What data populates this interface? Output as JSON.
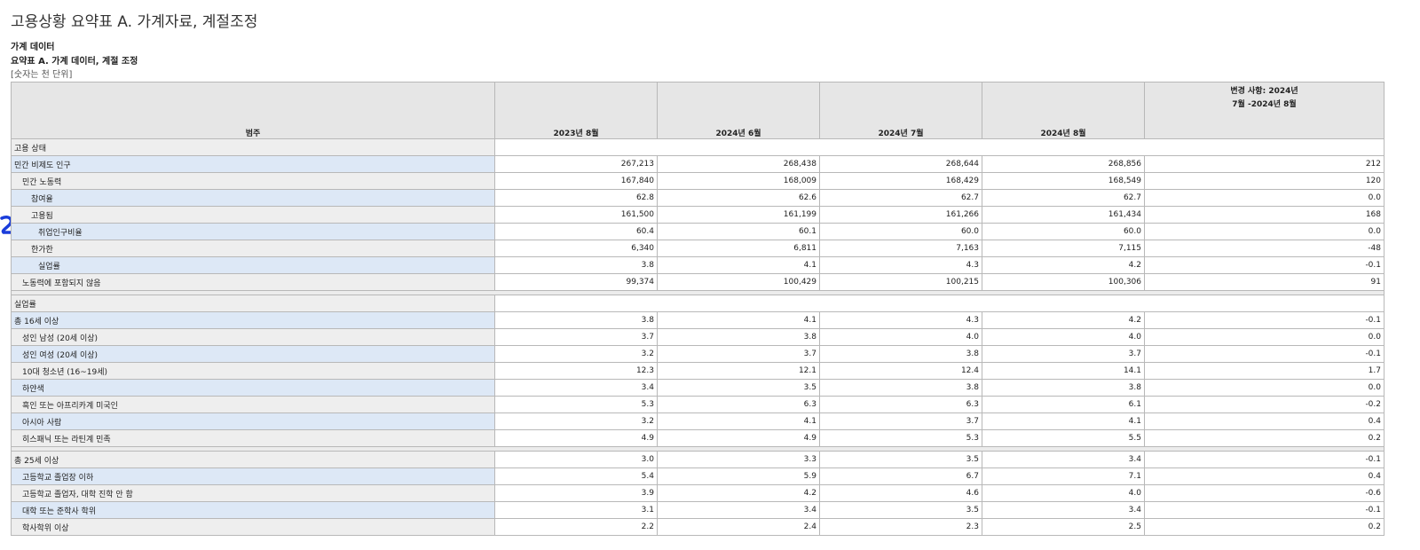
{
  "header": {
    "title": "고용상황 요약표 A. 가계자료, 계절조정",
    "subtitle1": "가계 데이터",
    "subtitle2": "요약표 A. 가계 데이터, 계절 조정",
    "unit_note": "[숫자는 천 단위]"
  },
  "table": {
    "columns": {
      "category": "범주",
      "c1": "2023년 8월",
      "c2": "2024년 6월",
      "c3": "2024년 7월",
      "c4": "2024년 8월",
      "change_line1": "변경 사항: 2024년",
      "change_line2": "7월 -2024년 8월"
    },
    "sections": {
      "employment": "고용 상태",
      "unemployment_rates": "실업률"
    },
    "employment_rows": [
      {
        "label": "민간 비제도 인구",
        "values": [
          "267,213",
          "268,438",
          "268,644",
          "268,856",
          "212"
        ]
      },
      {
        "label": "민간 노동력",
        "values": [
          "167,840",
          "168,009",
          "168,429",
          "168,549",
          "120"
        ]
      },
      {
        "label": "참여율",
        "values": [
          "62.8",
          "62.6",
          "62.7",
          "62.7",
          "0.0"
        ]
      },
      {
        "label": "고용됨",
        "values": [
          "161,500",
          "161,199",
          "161,266",
          "161,434",
          "168"
        ]
      },
      {
        "label": "취업인구비율",
        "values": [
          "60.4",
          "60.1",
          "60.0",
          "60.0",
          "0.0"
        ]
      },
      {
        "label": "한가한",
        "values": [
          "6,340",
          "6,811",
          "7,163",
          "7,115",
          "-48"
        ]
      },
      {
        "label": "실업률",
        "values": [
          "3.8",
          "4.1",
          "4.3",
          "4.2",
          "-0.1"
        ]
      },
      {
        "label": "노동력에 포함되지 않음",
        "values": [
          "99,374",
          "100,429",
          "100,215",
          "100,306",
          "91"
        ]
      }
    ],
    "rate_rows_16": [
      {
        "label": "총 16세 이상",
        "values": [
          "3.8",
          "4.1",
          "4.3",
          "4.2",
          "-0.1"
        ]
      },
      {
        "label": "성인 남성 (20세 이상)",
        "values": [
          "3.7",
          "3.8",
          "4.0",
          "4.0",
          "0.0"
        ]
      },
      {
        "label": "성인 여성 (20세 이상)",
        "values": [
          "3.2",
          "3.7",
          "3.8",
          "3.7",
          "-0.1"
        ]
      },
      {
        "label": "10대 청소년 (16~19세)",
        "values": [
          "12.3",
          "12.1",
          "12.4",
          "14.1",
          "1.7"
        ]
      },
      {
        "label": "하얀색",
        "values": [
          "3.4",
          "3.5",
          "3.8",
          "3.8",
          "0.0"
        ]
      },
      {
        "label": "흑인 또는 아프리카계 미국인",
        "values": [
          "5.3",
          "6.3",
          "6.3",
          "6.1",
          "-0.2"
        ]
      },
      {
        "label": "아시아 사람",
        "values": [
          "3.2",
          "4.1",
          "3.7",
          "4.1",
          "0.4"
        ]
      },
      {
        "label": "히스패닉 또는 라틴계 민족",
        "values": [
          "4.9",
          "4.9",
          "5.3",
          "5.5",
          "0.2"
        ]
      }
    ],
    "rate_rows_25": [
      {
        "label": "총 25세 이상",
        "values": [
          "3.0",
          "3.3",
          "3.5",
          "3.4",
          "-0.1"
        ]
      },
      {
        "label": "고등학교 졸업장 이하",
        "values": [
          "5.4",
          "5.9",
          "6.7",
          "7.1",
          "0.4"
        ]
      },
      {
        "label": "고등학교 졸업자, 대학 진학 안 함",
        "values": [
          "3.9",
          "4.2",
          "4.6",
          "4.0",
          "-0.6"
        ]
      },
      {
        "label": "대학 또는 준학사 학위",
        "values": [
          "3.1",
          "3.4",
          "3.5",
          "3.4",
          "-0.1"
        ]
      },
      {
        "label": "학사학위 이상",
        "values": [
          "2.2",
          "2.4",
          "2.3",
          "2.5",
          "0.2"
        ]
      }
    ]
  },
  "colors": {
    "label_blue": "#dde8f6",
    "label_gray": "#eeeeee",
    "header_gray": "#e6e6e6",
    "pen_mark": "#1a3ddb"
  }
}
